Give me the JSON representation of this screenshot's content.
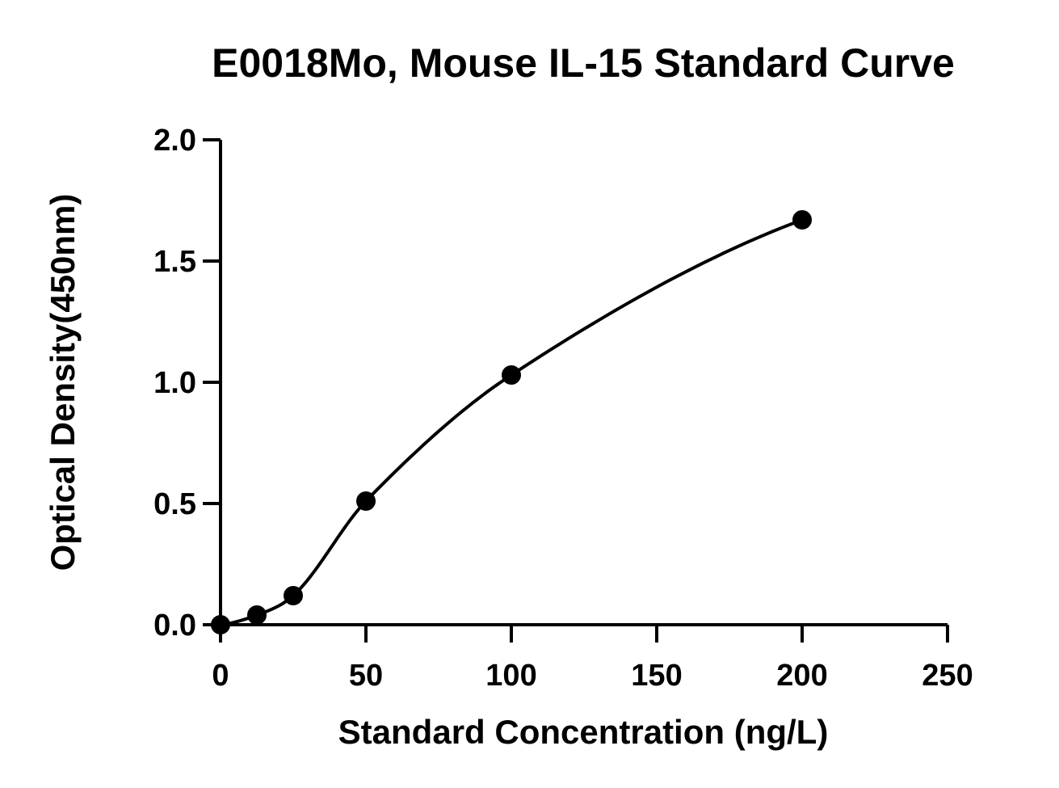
{
  "chart_data": {
    "type": "scatter",
    "title": "E0018Mo, Mouse IL-15 Standard Curve",
    "xlabel": "Standard Concentration (ng/L)",
    "ylabel": "Optical Density(450nm)",
    "xlim": [
      0,
      250
    ],
    "ylim": [
      0,
      2.0
    ],
    "x_ticks": [
      "0",
      "50",
      "100",
      "150",
      "200",
      "250"
    ],
    "y_ticks": [
      "0.0",
      "0.5",
      "1.0",
      "1.5",
      "2.0"
    ],
    "grid": false,
    "legend": "none",
    "series": [
      {
        "x": [
          0,
          12.5,
          25,
          50,
          100,
          200
        ],
        "y": [
          0.0,
          0.04,
          0.12,
          0.51,
          1.03,
          1.67
        ],
        "fit": "4PL curve",
        "color": "#000000"
      }
    ]
  }
}
